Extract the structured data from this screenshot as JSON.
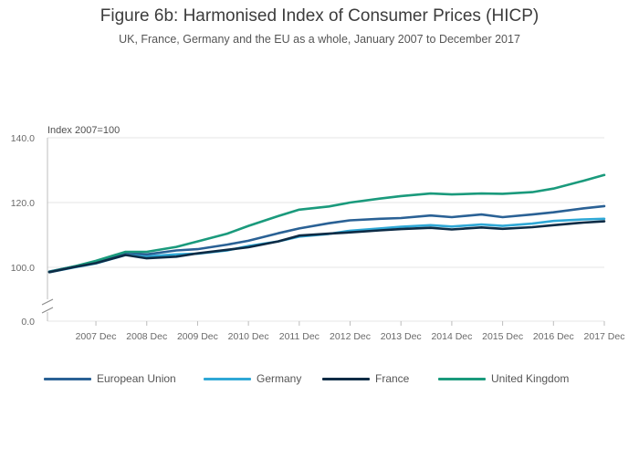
{
  "header": {
    "title": "Figure 6b: Harmonised Index of Consumer Prices (HICP)",
    "subtitle": "UK, France, Germany and the EU as a whole, January 2007 to December 2017"
  },
  "colors": {
    "european_union": "#2a6195",
    "germany": "#2fa8d6",
    "france": "#0d2b45",
    "united_kingdom": "#1a9a7c",
    "grid": "#e6e6e6",
    "axis": "#bdbdbd"
  },
  "chart_data": {
    "type": "line",
    "title": "Figure 6b: Harmonised Index of Consumer Prices (HICP)",
    "subtitle": "UK, France, Germany and the EU as a whole, January 2007 to December 2017",
    "ylabel": "Index 2007=100",
    "xlabel": "",
    "y_axis_break": true,
    "ylim": [
      0,
      140
    ],
    "yticks": [
      "0.0",
      "100.0",
      "120.0",
      "140.0"
    ],
    "xticks": [
      "2007 Dec",
      "2008 Dec",
      "2009 Dec",
      "2010 Dec",
      "2011 Dec",
      "2012 Dec",
      "2013 Dec",
      "2014 Dec",
      "2015 Dec",
      "2016 Dec",
      "2017 Dec"
    ],
    "grid": true,
    "legend_position": "bottom",
    "x": [
      "2007 Jan",
      "2007 Jul",
      "2007 Dec",
      "2008 Jul",
      "2008 Dec",
      "2009 Jul",
      "2009 Dec",
      "2010 Jul",
      "2010 Dec",
      "2011 Jul",
      "2011 Dec",
      "2012 Jul",
      "2012 Dec",
      "2013 Jul",
      "2013 Dec",
      "2014 Jul",
      "2014 Dec",
      "2015 Jul",
      "2015 Dec",
      "2016 Jul",
      "2016 Dec",
      "2017 Jul",
      "2017 Dec"
    ],
    "series": [
      {
        "name": "European Union",
        "key": "european_union",
        "values": [
          98.7,
          100.3,
          101.5,
          104.5,
          104.0,
          105.2,
          105.6,
          107.0,
          108.2,
          110.5,
          112.0,
          113.6,
          114.5,
          115.0,
          115.2,
          116.0,
          115.5,
          116.3,
          115.5,
          116.3,
          117.0,
          118.2,
          118.9
        ]
      },
      {
        "name": "Germany",
        "key": "germany",
        "values": [
          98.5,
          100.0,
          101.2,
          103.8,
          103.4,
          104.0,
          104.2,
          105.2,
          106.6,
          108.0,
          109.5,
          110.3,
          111.3,
          112.0,
          112.5,
          113.0,
          112.6,
          113.2,
          112.8,
          113.5,
          114.3,
          114.8,
          115.0
        ]
      },
      {
        "name": "France",
        "key": "france",
        "values": [
          98.5,
          100.1,
          101.3,
          103.8,
          102.8,
          103.3,
          104.3,
          105.4,
          106.2,
          108.0,
          109.8,
          110.4,
          110.8,
          111.4,
          111.8,
          112.2,
          111.7,
          112.3,
          111.9,
          112.4,
          113.0,
          113.8,
          114.2
        ]
      },
      {
        "name": "United Kingdom",
        "key": "united_kingdom",
        "values": [
          98.6,
          100.3,
          102.0,
          104.8,
          104.8,
          106.3,
          108.0,
          110.4,
          112.8,
          115.8,
          117.8,
          118.8,
          120.0,
          121.2,
          122.0,
          122.8,
          122.5,
          122.8,
          122.7,
          123.2,
          124.3,
          126.7,
          128.5
        ]
      }
    ]
  }
}
